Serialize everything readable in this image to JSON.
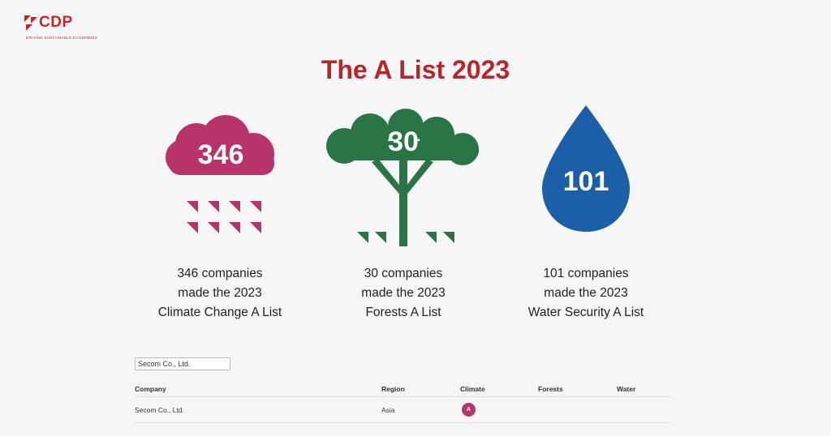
{
  "brand": {
    "name": "CDP",
    "tagline": "DRIVING SUSTAINABLE ECONOMIES",
    "accent": "#c0272d"
  },
  "title": "The A List 2023",
  "stats": [
    {
      "icon": "rain-cloud-icon",
      "number": "346",
      "color": "#b8336a",
      "lines": [
        "346 companies",
        "made the 2023",
        "Climate Change A List"
      ]
    },
    {
      "icon": "tree-icon",
      "number": "30",
      "color": "#2a7446",
      "lines": [
        "30 companies",
        "made the 2023",
        "Forests A List"
      ]
    },
    {
      "icon": "water-drop-icon",
      "number": "101",
      "color": "#1a5fa8",
      "lines": [
        "101 companies",
        "made the 2023",
        "Water Security A List"
      ]
    }
  ],
  "search": {
    "value": "Secom Co., Ltd."
  },
  "table": {
    "headers": [
      "Company",
      "Region",
      "Climate",
      "Forests",
      "Water"
    ],
    "rows": [
      {
        "company": "Secom Co., Ltd.",
        "region": "Asia",
        "climate": "A",
        "forests": "",
        "water": ""
      }
    ]
  }
}
